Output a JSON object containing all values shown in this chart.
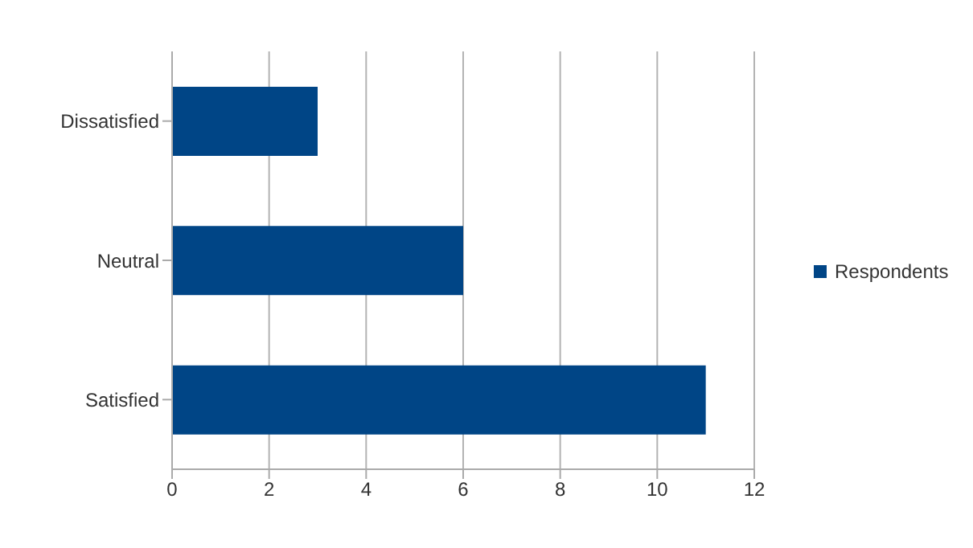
{
  "chart_data": {
    "type": "bar",
    "orientation": "horizontal",
    "categories": [
      "Dissatisfied",
      "Neutral",
      "Satisfied"
    ],
    "series": [
      {
        "name": "Respondents",
        "color": "#004586",
        "values": [
          3,
          6,
          11
        ]
      }
    ],
    "xlim": [
      0,
      12
    ],
    "xticks": [
      0,
      2,
      4,
      6,
      8,
      10,
      12
    ],
    "grid": "x",
    "legend": "right"
  }
}
